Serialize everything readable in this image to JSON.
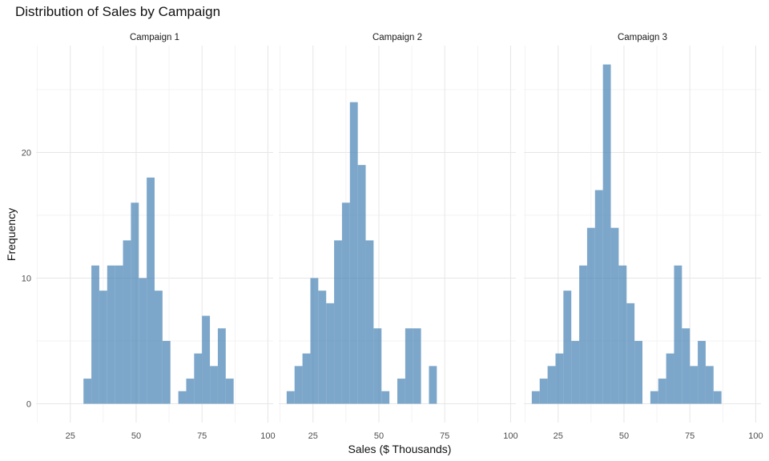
{
  "chart_data": {
    "type": "bar",
    "subtype": "faceted-histogram",
    "title": "Distribution of Sales by Campaign",
    "xlabel": "Sales ($ Thousands)",
    "ylabel": "Frequency",
    "xlim": [
      12,
      102
    ],
    "ylim": [
      -1.5,
      28.5
    ],
    "x_ticks": [
      25,
      50,
      75,
      100
    ],
    "y_ticks": [
      0,
      10,
      20
    ],
    "grid": true,
    "bar_color": "#4682b4",
    "bin_width": 3,
    "bin_start": 15,
    "panels": [
      {
        "name": "Campaign 1",
        "bins": [
          {
            "x0": 30,
            "count": 2
          },
          {
            "x0": 33,
            "count": 11
          },
          {
            "x0": 36,
            "count": 9
          },
          {
            "x0": 39,
            "count": 11
          },
          {
            "x0": 42,
            "count": 11
          },
          {
            "x0": 45,
            "count": 13
          },
          {
            "x0": 48,
            "count": 16
          },
          {
            "x0": 51,
            "count": 10
          },
          {
            "x0": 54,
            "count": 18
          },
          {
            "x0": 57,
            "count": 9
          },
          {
            "x0": 60,
            "count": 5
          },
          {
            "x0": 66,
            "count": 1
          },
          {
            "x0": 69,
            "count": 2
          },
          {
            "x0": 72,
            "count": 4
          },
          {
            "x0": 75,
            "count": 7
          },
          {
            "x0": 78,
            "count": 3
          },
          {
            "x0": 81,
            "count": 6
          },
          {
            "x0": 84,
            "count": 2
          }
        ]
      },
      {
        "name": "Campaign 2",
        "bins": [
          {
            "x0": 15,
            "count": 1
          },
          {
            "x0": 18,
            "count": 3
          },
          {
            "x0": 21,
            "count": 4
          },
          {
            "x0": 24,
            "count": 10
          },
          {
            "x0": 27,
            "count": 9
          },
          {
            "x0": 30,
            "count": 8
          },
          {
            "x0": 33,
            "count": 13
          },
          {
            "x0": 36,
            "count": 16
          },
          {
            "x0": 39,
            "count": 24
          },
          {
            "x0": 42,
            "count": 19
          },
          {
            "x0": 45,
            "count": 13
          },
          {
            "x0": 48,
            "count": 6
          },
          {
            "x0": 51,
            "count": 1
          },
          {
            "x0": 57,
            "count": 2
          },
          {
            "x0": 60,
            "count": 6
          },
          {
            "x0": 63,
            "count": 6
          },
          {
            "x0": 69,
            "count": 3
          }
        ]
      },
      {
        "name": "Campaign 3",
        "bins": [
          {
            "x0": 15,
            "count": 1
          },
          {
            "x0": 18,
            "count": 2
          },
          {
            "x0": 21,
            "count": 3
          },
          {
            "x0": 24,
            "count": 4
          },
          {
            "x0": 27,
            "count": 9
          },
          {
            "x0": 30,
            "count": 5
          },
          {
            "x0": 33,
            "count": 11
          },
          {
            "x0": 36,
            "count": 14
          },
          {
            "x0": 39,
            "count": 17
          },
          {
            "x0": 42,
            "count": 27
          },
          {
            "x0": 45,
            "count": 14
          },
          {
            "x0": 48,
            "count": 11
          },
          {
            "x0": 51,
            "count": 8
          },
          {
            "x0": 54,
            "count": 5
          },
          {
            "x0": 60,
            "count": 1
          },
          {
            "x0": 63,
            "count": 2
          },
          {
            "x0": 66,
            "count": 4
          },
          {
            "x0": 69,
            "count": 11
          },
          {
            "x0": 72,
            "count": 6
          },
          {
            "x0": 75,
            "count": 3
          },
          {
            "x0": 78,
            "count": 5
          },
          {
            "x0": 81,
            "count": 3
          },
          {
            "x0": 84,
            "count": 1
          }
        ]
      }
    ]
  }
}
